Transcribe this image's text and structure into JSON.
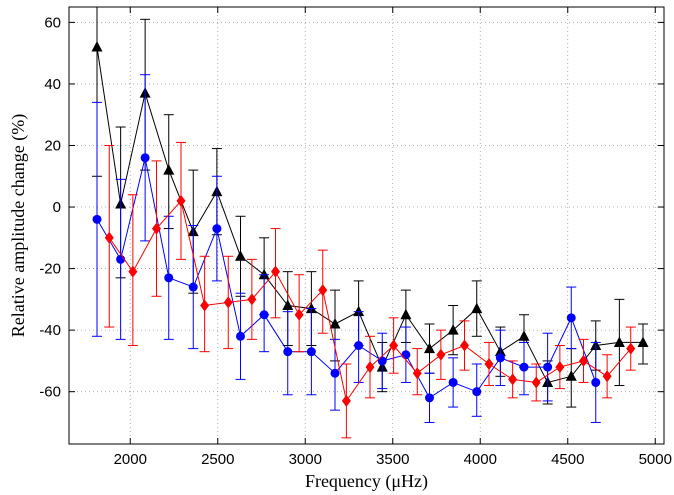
{
  "chart_data": {
    "type": "scatter",
    "title": "",
    "xlabel": "Frequency (μHz)",
    "ylabel": "Relative amplitude change (%)",
    "xlim": [
      1650,
      5050
    ],
    "ylim": [
      -77,
      65
    ],
    "xticks": [
      2000,
      2500,
      3000,
      3500,
      4000,
      4500,
      5000
    ],
    "yticks": [
      -60,
      -40,
      -20,
      0,
      20,
      40,
      60
    ],
    "grid": true,
    "legend": "none",
    "series": [
      {
        "color": "#000000",
        "marker": "triangle",
        "points": [
          {
            "x": 1810,
            "y": 52,
            "lo": 10,
            "hi": 66
          },
          {
            "x": 1945,
            "y": 1,
            "lo": -23,
            "hi": 26
          },
          {
            "x": 2085,
            "y": 37,
            "lo": 12,
            "hi": 61
          },
          {
            "x": 2220,
            "y": 12,
            "lo": -7,
            "hi": 30
          },
          {
            "x": 2360,
            "y": -8,
            "lo": -28,
            "hi": 12
          },
          {
            "x": 2495,
            "y": 5,
            "lo": -9,
            "hi": 19
          },
          {
            "x": 2630,
            "y": -16,
            "lo": -29,
            "hi": -3
          },
          {
            "x": 2765,
            "y": -22,
            "lo": -35,
            "hi": -10
          },
          {
            "x": 2900,
            "y": -32,
            "lo": -45,
            "hi": -21
          },
          {
            "x": 3035,
            "y": -33,
            "lo": -45,
            "hi": -21
          },
          {
            "x": 3170,
            "y": -38,
            "lo": -50,
            "hi": -27
          },
          {
            "x": 3305,
            "y": -34,
            "lo": -45,
            "hi": -24
          },
          {
            "x": 3440,
            "y": -52,
            "lo": -60,
            "hi": -44
          },
          {
            "x": 3575,
            "y": -35,
            "lo": -44,
            "hi": -27
          },
          {
            "x": 3710,
            "y": -46,
            "lo": -54,
            "hi": -38
          },
          {
            "x": 3845,
            "y": -40,
            "lo": -48,
            "hi": -32
          },
          {
            "x": 3980,
            "y": -33,
            "lo": -42,
            "hi": -24
          },
          {
            "x": 4115,
            "y": -47,
            "lo": -55,
            "hi": -39
          },
          {
            "x": 4250,
            "y": -42,
            "lo": -52,
            "hi": -35
          },
          {
            "x": 4385,
            "y": -57,
            "lo": -64,
            "hi": -50
          },
          {
            "x": 4520,
            "y": -55,
            "lo": -65,
            "hi": -46
          },
          {
            "x": 4660,
            "y": -45,
            "lo": -53,
            "hi": -37
          },
          {
            "x": 4795,
            "y": -44,
            "lo": -58,
            "hi": -30
          },
          {
            "x": 4930,
            "y": -44,
            "lo": -51,
            "hi": -38
          }
        ]
      },
      {
        "color": "#0000ff",
        "marker": "circle",
        "points": [
          {
            "x": 1810,
            "y": -4,
            "lo": -42,
            "hi": 34
          },
          {
            "x": 1945,
            "y": -17,
            "lo": -43,
            "hi": 9
          },
          {
            "x": 2085,
            "y": 16,
            "lo": -11,
            "hi": 43
          },
          {
            "x": 2220,
            "y": -23,
            "lo": -43,
            "hi": -3
          },
          {
            "x": 2360,
            "y": -26,
            "lo": -46,
            "hi": -6
          },
          {
            "x": 2495,
            "y": -7,
            "lo": -24,
            "hi": 10
          },
          {
            "x": 2630,
            "y": -42,
            "lo": -56,
            "hi": -28
          },
          {
            "x": 2765,
            "y": -35,
            "lo": -47,
            "hi": -22
          },
          {
            "x": 2900,
            "y": -47,
            "lo": -61,
            "hi": -34
          },
          {
            "x": 3035,
            "y": -47,
            "lo": -61,
            "hi": -33
          },
          {
            "x": 3170,
            "y": -54,
            "lo": -66,
            "hi": -43
          },
          {
            "x": 3305,
            "y": -45,
            "lo": -57,
            "hi": -34
          },
          {
            "x": 3440,
            "y": -50,
            "lo": -59,
            "hi": -41
          },
          {
            "x": 3575,
            "y": -48,
            "lo": -57,
            "hi": -39
          },
          {
            "x": 3710,
            "y": -62,
            "lo": -70,
            "hi": -54
          },
          {
            "x": 3845,
            "y": -57,
            "lo": -65,
            "hi": -49
          },
          {
            "x": 3980,
            "y": -60,
            "lo": -68,
            "hi": -51
          },
          {
            "x": 4115,
            "y": -49,
            "lo": -58,
            "hi": -40
          },
          {
            "x": 4250,
            "y": -52,
            "lo": -61,
            "hi": -44
          },
          {
            "x": 4385,
            "y": -52,
            "lo": -63,
            "hi": -41
          },
          {
            "x": 4520,
            "y": -36,
            "lo": -46,
            "hi": -26
          },
          {
            "x": 4660,
            "y": -57,
            "lo": -70,
            "hi": -44
          }
        ]
      },
      {
        "color": "#ff0000",
        "marker": "diamond",
        "points": [
          {
            "x": 1880,
            "y": -10,
            "lo": -39,
            "hi": 20
          },
          {
            "x": 2015,
            "y": -21,
            "lo": -45,
            "hi": 4
          },
          {
            "x": 2150,
            "y": -7,
            "lo": -29,
            "hi": 15
          },
          {
            "x": 2290,
            "y": 2,
            "lo": -17,
            "hi": 21
          },
          {
            "x": 2425,
            "y": -32,
            "lo": -47,
            "hi": -16
          },
          {
            "x": 2560,
            "y": -31,
            "lo": -46,
            "hi": -16
          },
          {
            "x": 2695,
            "y": -30,
            "lo": -43,
            "hi": -17
          },
          {
            "x": 2830,
            "y": -21,
            "lo": -36,
            "hi": -7
          },
          {
            "x": 2965,
            "y": -35,
            "lo": -47,
            "hi": -22
          },
          {
            "x": 3100,
            "y": -27,
            "lo": -41,
            "hi": -14
          },
          {
            "x": 3235,
            "y": -63,
            "lo": -75,
            "hi": -51
          },
          {
            "x": 3370,
            "y": -52,
            "lo": -62,
            "hi": -42
          },
          {
            "x": 3505,
            "y": -45,
            "lo": -54,
            "hi": -36
          },
          {
            "x": 3640,
            "y": -54,
            "lo": -61,
            "hi": -46
          },
          {
            "x": 3775,
            "y": -48,
            "lo": -56,
            "hi": -40
          },
          {
            "x": 3910,
            "y": -45,
            "lo": -53,
            "hi": -37
          },
          {
            "x": 4050,
            "y": -51,
            "lo": -58,
            "hi": -44
          },
          {
            "x": 4185,
            "y": -56,
            "lo": -62,
            "hi": -50
          },
          {
            "x": 4320,
            "y": -57,
            "lo": -63,
            "hi": -51
          },
          {
            "x": 4455,
            "y": -52,
            "lo": -59,
            "hi": -45
          },
          {
            "x": 4590,
            "y": -50,
            "lo": -57,
            "hi": -43
          },
          {
            "x": 4725,
            "y": -55,
            "lo": -62,
            "hi": -48
          },
          {
            "x": 4860,
            "y": -46,
            "lo": -53,
            "hi": -39
          }
        ]
      }
    ]
  }
}
